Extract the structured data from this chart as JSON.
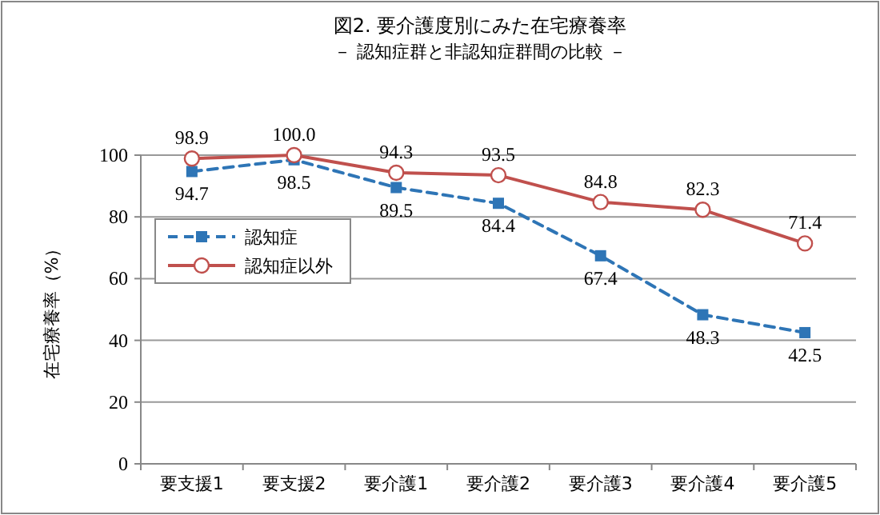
{
  "chart_data": {
    "type": "line",
    "title": "図2. 要介護度別にみた在宅療養率",
    "subtitle": "－ 認知症群と非認知症群間の比較 －",
    "ylabel": "在宅療養率（%）",
    "categories": [
      "要支援1",
      "要支援2",
      "要介護1",
      "要介護2",
      "要介護3",
      "要介護4",
      "要介護5"
    ],
    "series": [
      {
        "name": "認知症",
        "color": "#2e75b6",
        "marker": "square",
        "line_style": "dashed",
        "values": [
          94.7,
          98.5,
          89.5,
          84.4,
          67.4,
          48.3,
          42.5
        ],
        "value_labels": [
          "94.7",
          "98.5",
          "89.5",
          "84.4",
          "67.4",
          "48.3",
          "42.5"
        ]
      },
      {
        "name": "認知症以外",
        "color": "#c0504d",
        "marker": "circle",
        "line_style": "solid",
        "values": [
          98.9,
          100.0,
          94.3,
          93.5,
          84.8,
          82.3,
          71.4
        ],
        "value_labels": [
          "98.9",
          "100.0",
          "94.3",
          "93.5",
          "84.8",
          "82.3",
          "71.4"
        ]
      }
    ],
    "ylim": [
      0,
      100
    ],
    "yticks": [
      0,
      20,
      40,
      60,
      80,
      100
    ],
    "grid": "y",
    "legend": "left"
  }
}
